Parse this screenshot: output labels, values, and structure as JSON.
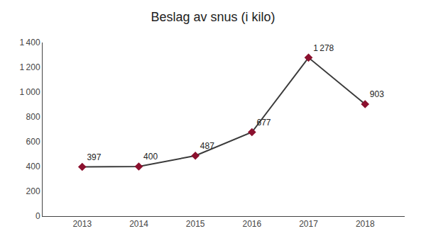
{
  "chart_data": {
    "type": "line",
    "title": "Beslag av snus (i kilo)",
    "x": [
      2013,
      2014,
      2015,
      2016,
      2017,
      2018
    ],
    "values": [
      397,
      400,
      487,
      677,
      1278,
      903
    ],
    "value_labels": [
      "397",
      "400",
      "487",
      "677",
      "1 278",
      "903"
    ],
    "data_labels": true,
    "color": "#3a3a3a",
    "colors": [
      "#8b102e",
      "#8b102e",
      "#8b102e",
      "#8b102e",
      "#8b102e",
      "#8b102e"
    ],
    "marker": "diamond",
    "xlim": [
      2012.3,
      2018.7
    ],
    "xticks": [
      2013,
      2014,
      2015,
      2016,
      2017,
      2018
    ],
    "ylim": [
      0,
      1400
    ],
    "yticks": [
      0,
      200,
      400,
      600,
      800,
      {
        "value": 1000,
        "label": "1 000"
      },
      {
        "value": 1200,
        "label": "1 200"
      },
      {
        "value": 1400,
        "label": "1 400"
      }
    ],
    "grid": false
  }
}
